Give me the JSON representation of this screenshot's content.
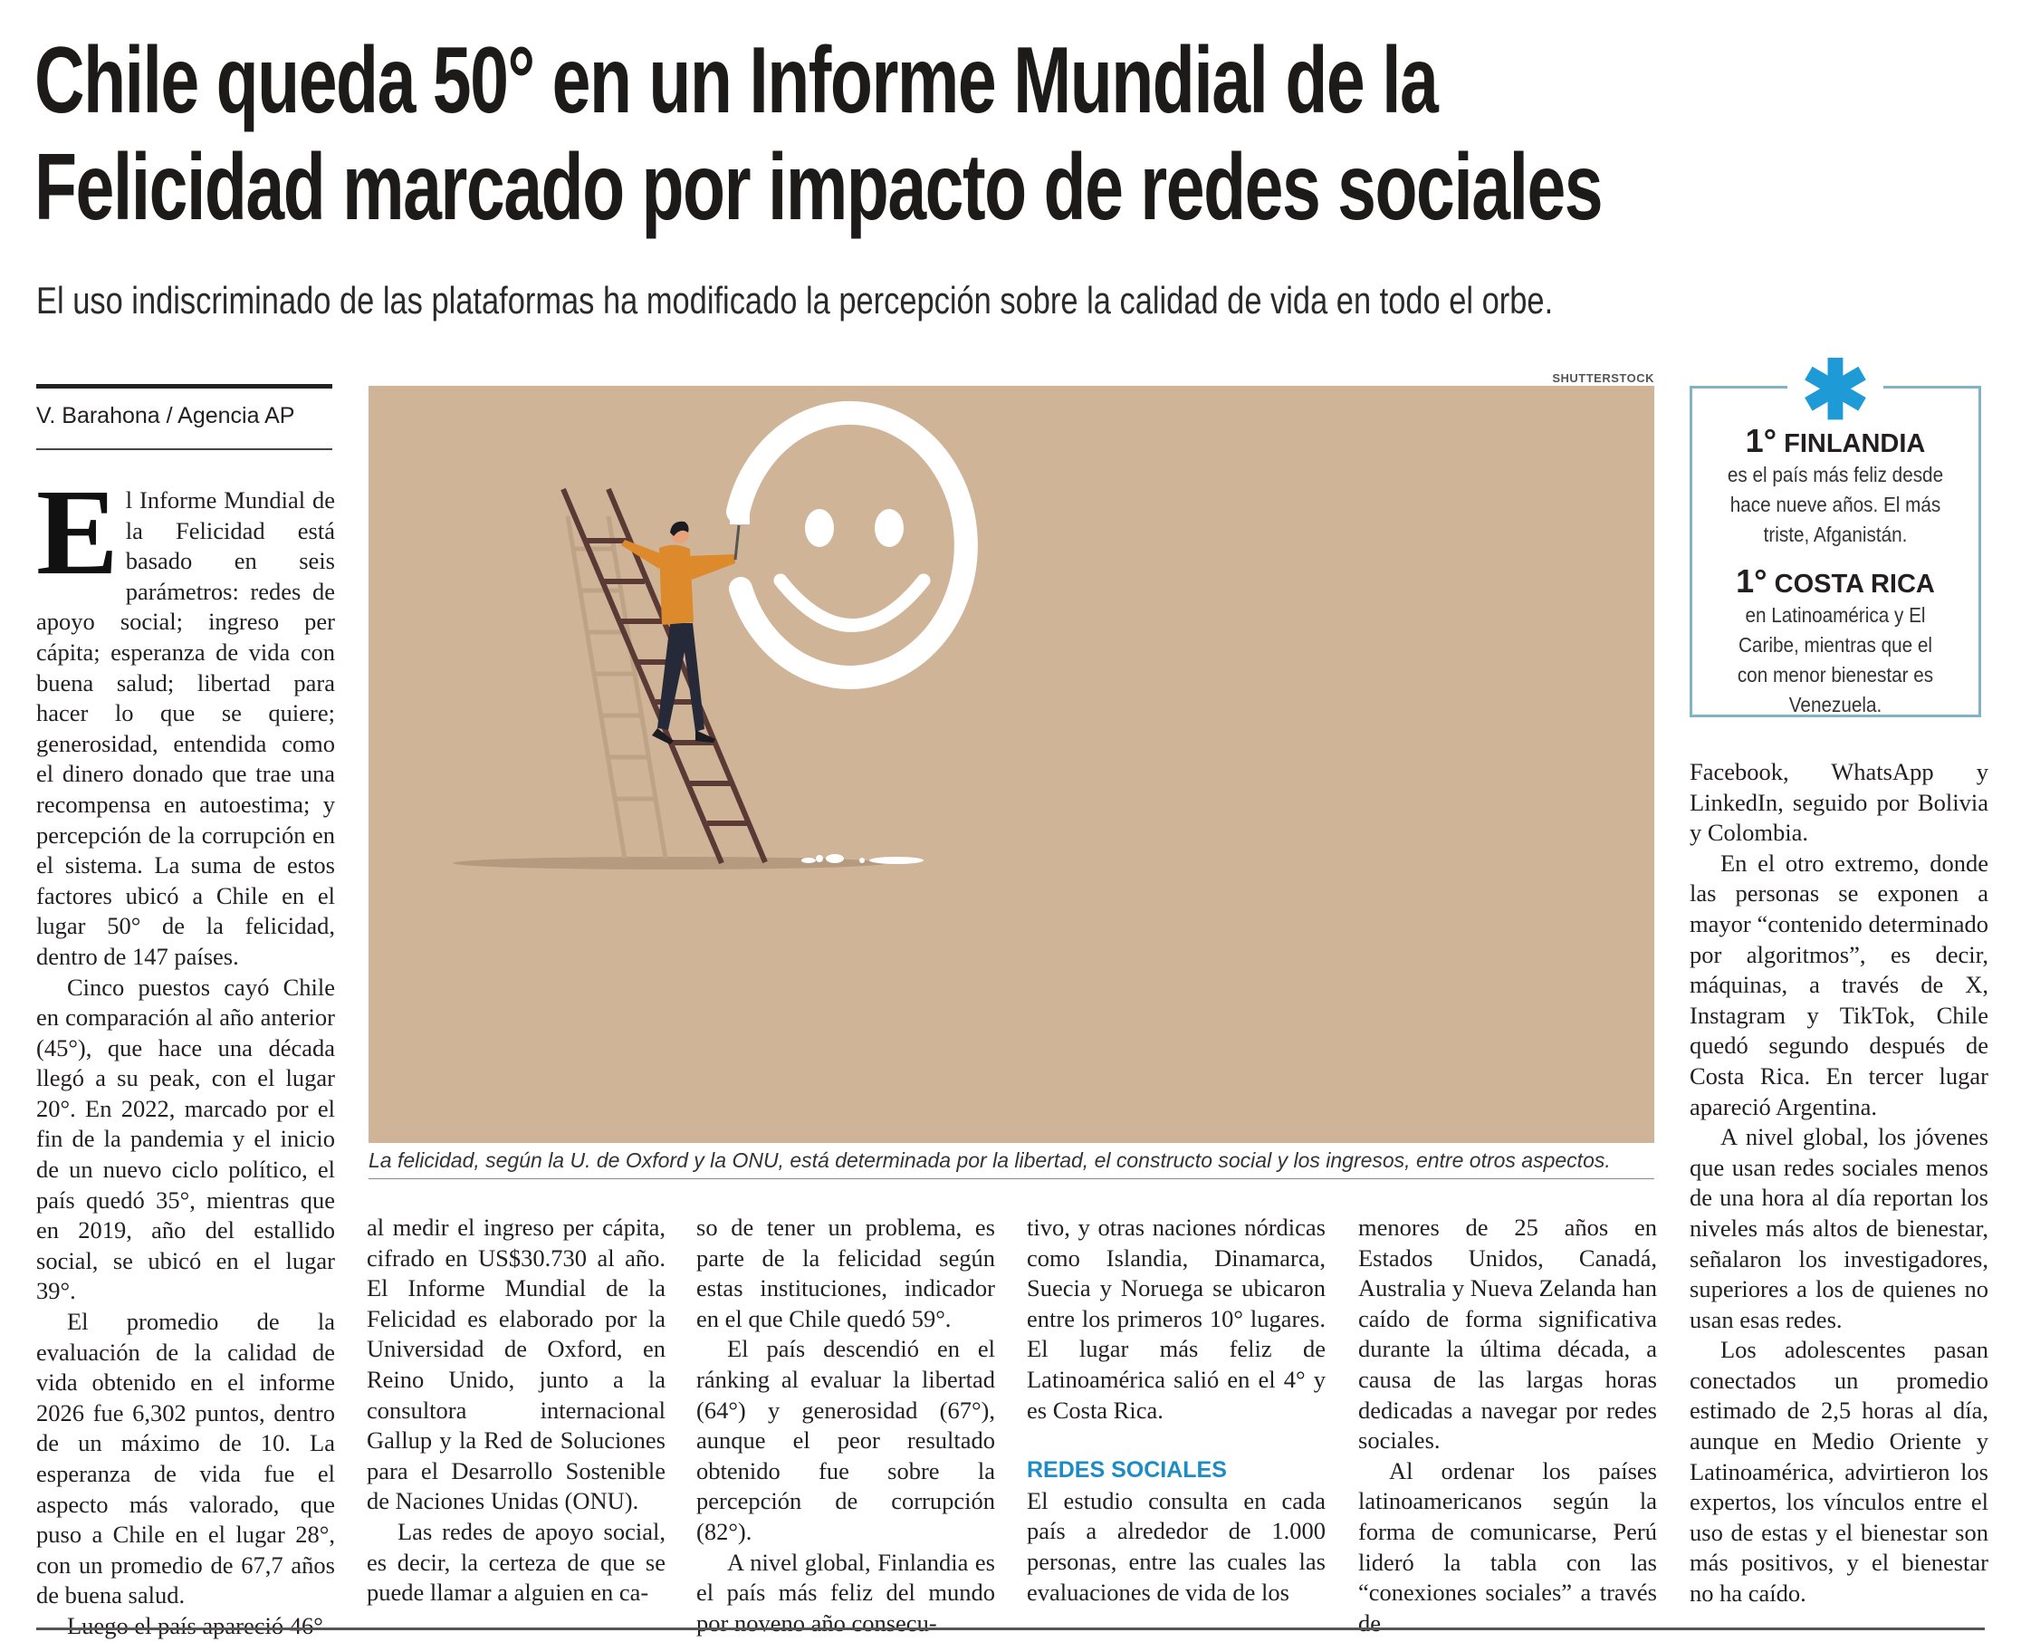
{
  "headline": {
    "line1": "Chile queda 50° en un Informe Mundial de la",
    "line2": "Felicidad marcado por impacto de redes sociales",
    "subtitle": "El uso indiscriminado de las plataformas ha modificado la percepción sobre la calidad de vida en todo el orbe."
  },
  "byline": "V. Barahona / Agencia AP",
  "photo": {
    "credit": "SHUTTERSTOCK",
    "caption": "La felicidad, según la U. de Oxford y la ONU, está determinada por la libertad, el constructo social y los ingresos, entre otros aspectos."
  },
  "sidebar": {
    "icon": "asterisk-icon",
    "facts": [
      {
        "rank": "1°",
        "country": "FINLANDIA",
        "text": "es el país más feliz desde hace nueve años. El más triste, Afganistán."
      },
      {
        "rank": "1°",
        "country": "COSTA RICA",
        "text": "en Latinoamérica y El Caribe, mientras que el con menor bienestar es Venezuela."
      }
    ]
  },
  "colors": {
    "accent": "#1c8dc4",
    "box_border": "#7fb3c6",
    "photo_bg": "#cfb498"
  },
  "body": {
    "col1": {
      "dropcap": "E",
      "p1": "l Informe Mundial de la Felicidad está basado en seis parámetros: redes de apoyo social; ingreso per cápita; esperanza de vida con buena salud; libertad para hacer lo que se quiere; generosidad, entendida como el dinero donado que trae una recompensa en autoestima; y percepción de la corrupción en el sistema. La suma de estos factores ubicó a Chile en el lugar 50° de la felicidad, dentro de 147 países.",
      "p2": "Cinco puestos cayó Chile en comparación al año anterior (45°), que hace una década llegó a su peak, con el lugar 20°. En 2022, marcado por el fin de la pandemia y el inicio de un nuevo ciclo político, el país quedó 35°, mientras que en 2019, año del estallido social, se ubicó en el lugar 39°.",
      "p3": "El promedio de la evaluación de la calidad de vida obtenido en el informe 2026 fue 6,302 puntos, dentro de un máximo de 10. La esperanza de vida fue el aspecto más valorado, que puso a Chile en el lugar 28°, con un promedio de 67,7 años de buena salud.",
      "p4": "Luego el país apareció 46°"
    },
    "col2": {
      "p1": "al medir el ingreso per cápita, cifrado en US$30.730 al año. El Informe Mundial de la Felicidad es elaborado por la Universidad de Oxford, en Reino Unido, junto a la consultora internacional Gallup y la Red de Soluciones para el Desarrollo Sostenible de Naciones Unidas (ONU).",
      "p2": "Las redes de apoyo social, es decir, la certeza de que se puede llamar a alguien en ca-"
    },
    "col3": {
      "p1": "so de tener un problema, es parte de la felicidad según estas instituciones, indicador en el que Chile quedó 59°.",
      "p2": "El país descendió en el ránking al evaluar la libertad (64°) y generosidad (67°), aunque el peor resultado obtenido fue sobre la percepción de corrupción (82°).",
      "p3": "A nivel global, Finlandia es el país más feliz del mundo por noveno año consecu-"
    },
    "col4": {
      "p1": "tivo, y otras naciones nórdicas como Islandia, Dinamarca, Suecia y Noruega se ubicaron entre los primeros 10° lugares. El lugar más feliz de Latinoamérica salió en el 4° y es Costa Rica.",
      "subhead": "REDES SOCIALES",
      "p2": "El estudio consulta en cada país a alrededor de 1.000 personas, entre las cuales las evaluaciones de vida de los"
    },
    "col5": {
      "p1": "menores de 25 años en Estados Unidos, Canadá, Australia y Nueva Zelanda han caído de forma significativa durante la última década, a causa de las largas horas dedicadas a navegar por redes sociales.",
      "p2": "Al ordenar los países latinoamericanos según la forma de comunicarse, Perú lideró la tabla con las “conexiones sociales” a través de"
    },
    "col6": {
      "p1": "Facebook, WhatsApp y LinkedIn, seguido por Bolivia y Colombia.",
      "p2": "En el otro extremo, donde las personas se exponen a mayor “contenido determinado por algoritmos”, es decir, máquinas, a través de X, Instagram y TikTok, Chile quedó segundo después de Costa Rica. En tercer lugar apareció Argentina.",
      "p3": "A nivel global, los jóvenes que usan redes sociales menos de una hora al día reportan los niveles más altos de bienestar, señalaron los investigadores, superiores a los de quienes no usan esas redes.",
      "p4": "Los adolescentes pasan conectados un promedio estimado de 2,5 horas al día, aunque en Medio Oriente y Latinoamérica, advirtieron los expertos, los vínculos entre el uso de estas y el bienestar son más positivos, y el bienestar no ha caído."
    }
  }
}
